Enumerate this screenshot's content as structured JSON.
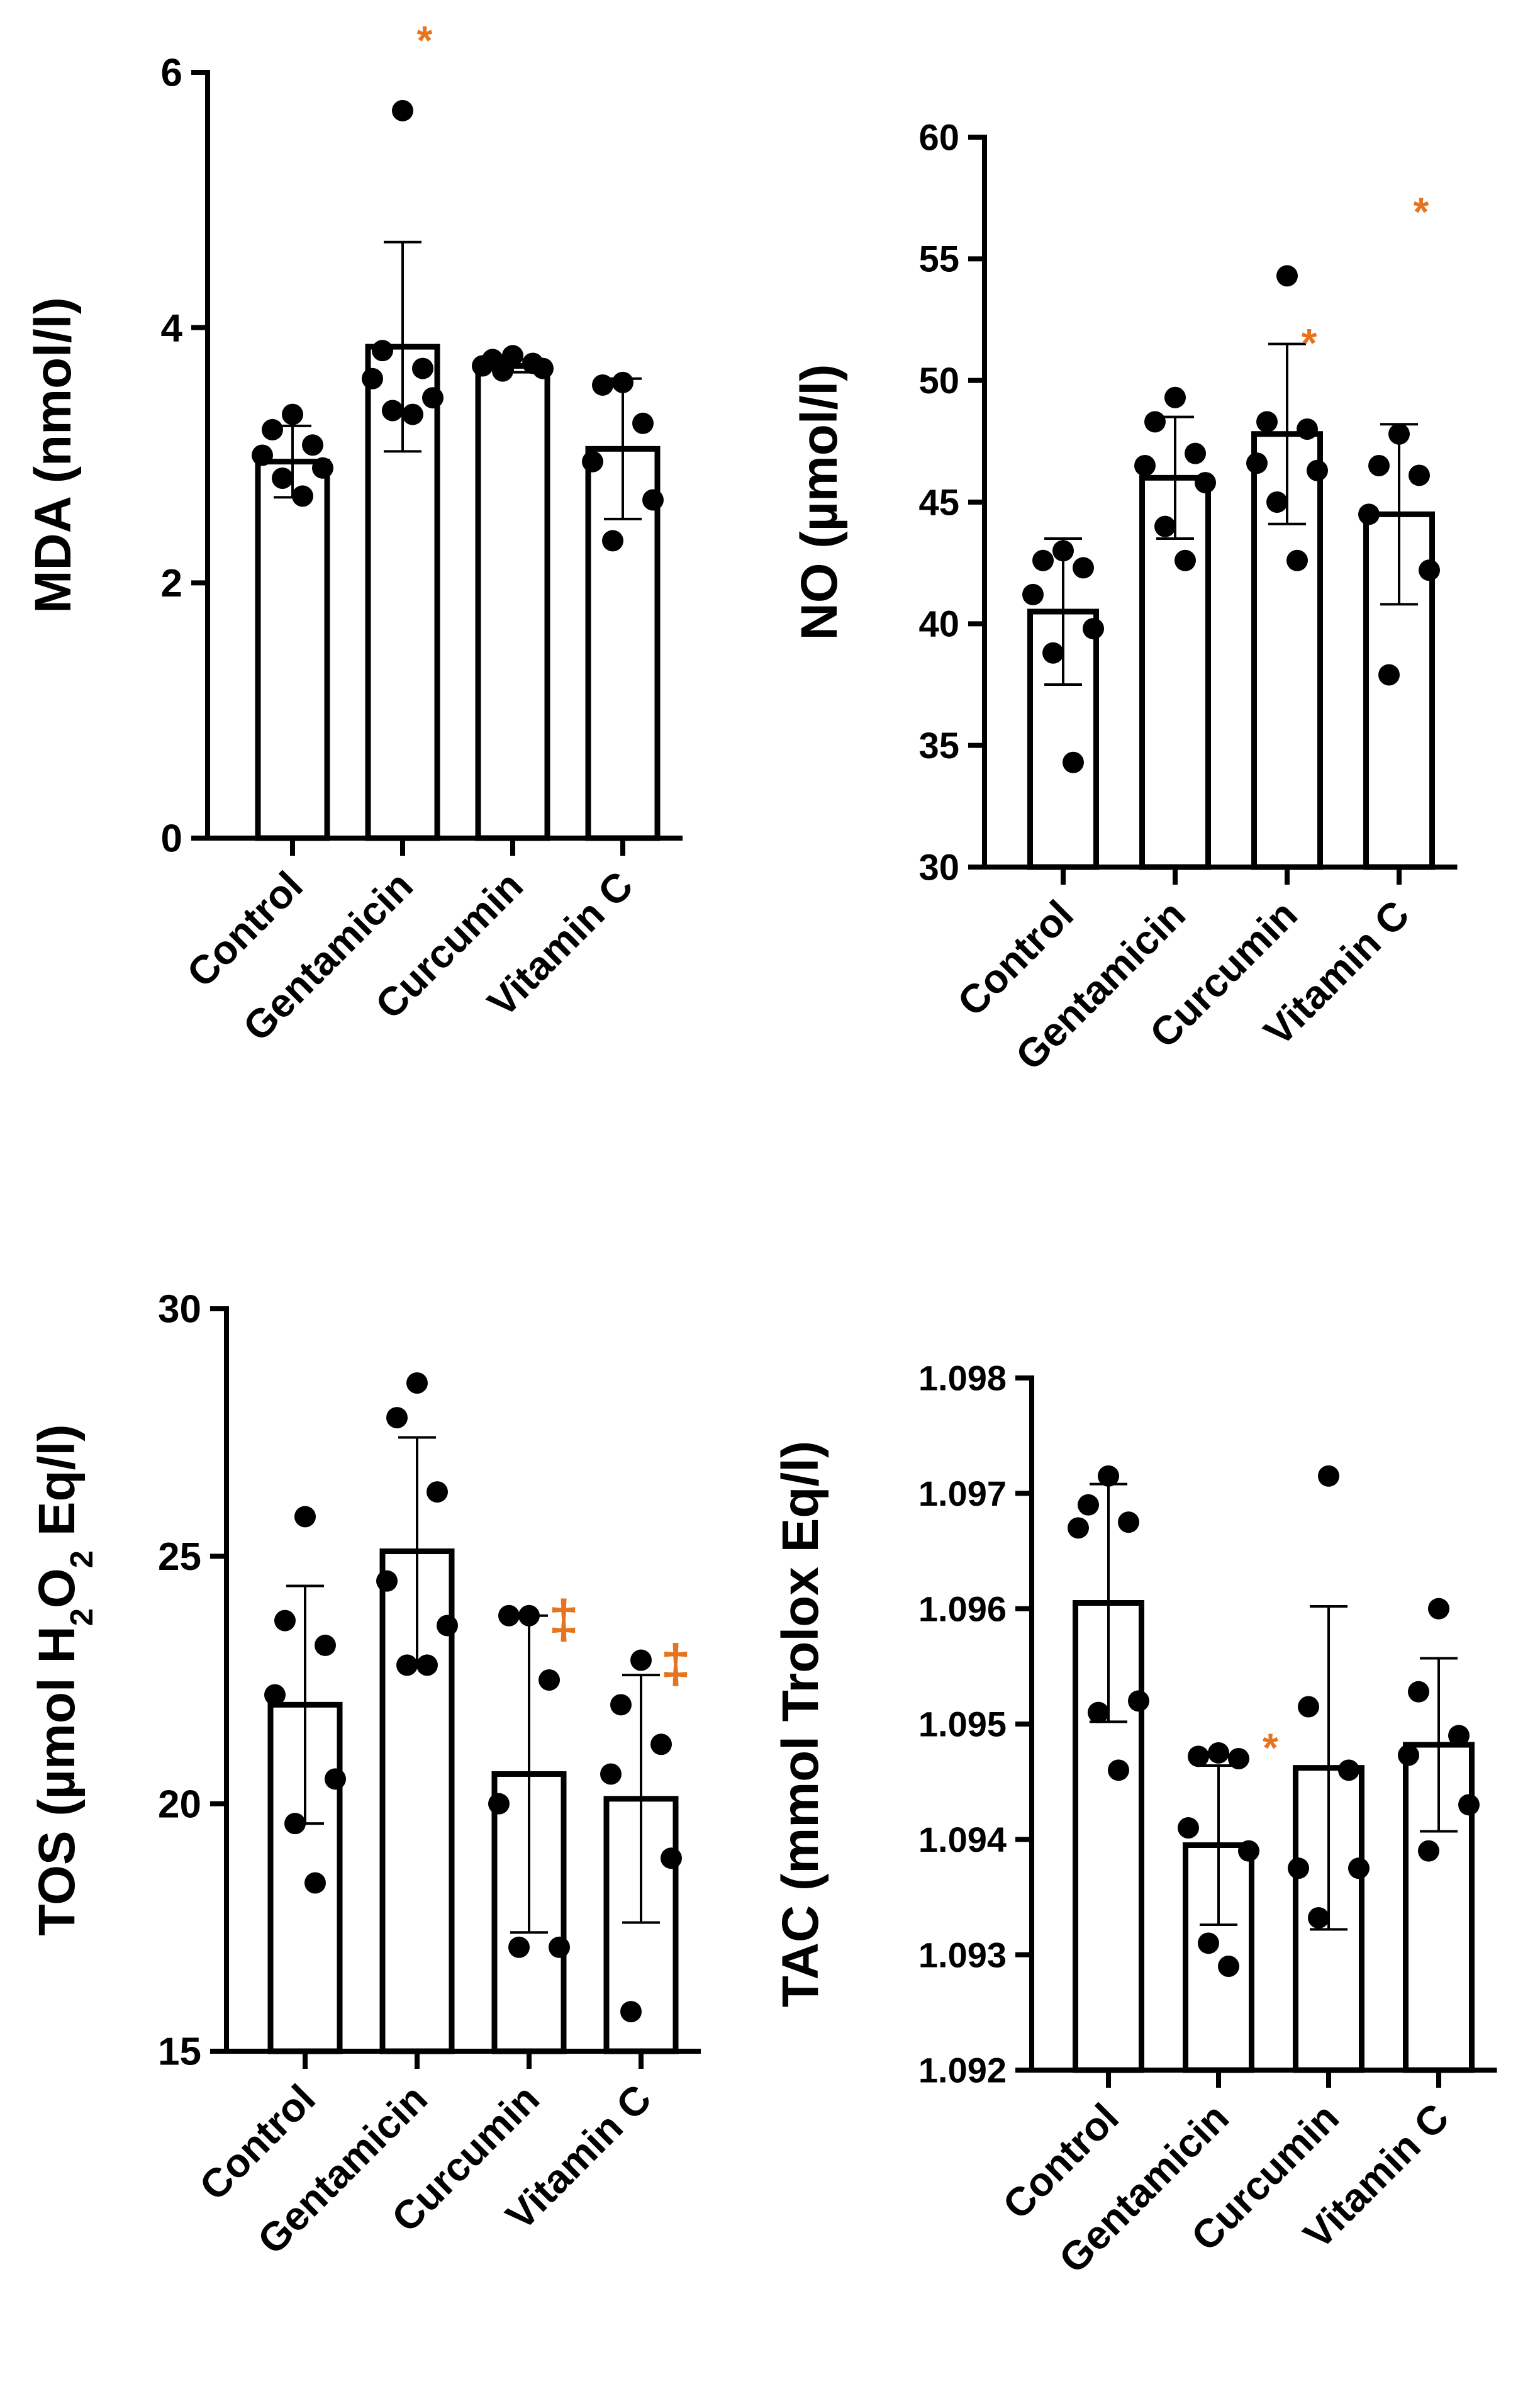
{
  "colors": {
    "ink": "#000000",
    "bar_fill": "#ffffff",
    "significance": "#e8731f"
  },
  "chart_data": [
    {
      "id": "mda",
      "type": "bar",
      "ylabel": "MDA (nmol/l)",
      "ylim": [
        0,
        6
      ],
      "yticks": [
        0,
        2,
        4,
        6
      ],
      "ytick_labels": [
        "0",
        "2",
        "4",
        "6"
      ],
      "categories": [
        "Control",
        "Gentamicin",
        "Curcumin",
        "Vitamin C"
      ],
      "means": [
        2.95,
        3.85,
        3.7,
        3.05
      ],
      "errors": [
        0.28,
        0.82,
        0.05,
        0.55
      ],
      "points": [
        [
          3.32,
          3.2,
          3.08,
          3.0,
          2.9,
          2.82,
          2.68
        ],
        [
          5.7,
          3.82,
          3.68,
          3.6,
          3.45,
          3.35,
          3.32
        ],
        [
          3.78,
          3.75,
          3.72,
          3.7,
          3.68,
          3.66
        ],
        [
          3.57,
          3.55,
          3.25,
          2.95,
          2.65,
          2.33
        ]
      ],
      "annotations": [
        {
          "category": 1,
          "y": 6.3,
          "text": "*"
        }
      ]
    },
    {
      "id": "no",
      "type": "bar",
      "ylabel": "NO (µmol/l)",
      "ylim": [
        30,
        60
      ],
      "yticks": [
        30,
        35,
        40,
        45,
        50,
        55,
        60
      ],
      "ytick_labels": [
        "30",
        "35",
        "40",
        "45",
        "50",
        "55",
        "60"
      ],
      "categories": [
        "Control",
        "Gentamicin",
        "Curcumin",
        "Vitamin C"
      ],
      "means": [
        40.5,
        46.0,
        47.8,
        44.5
      ],
      "errors": [
        3.0,
        2.5,
        3.7,
        3.7
      ],
      "points": [
        [
          43.0,
          42.6,
          42.3,
          41.2,
          39.8,
          38.8,
          34.3
        ],
        [
          49.3,
          48.3,
          47.0,
          46.5,
          45.8,
          44.0,
          42.6
        ],
        [
          54.3,
          48.3,
          48.0,
          46.6,
          46.3,
          45.0,
          42.6
        ],
        [
          47.8,
          46.5,
          46.1,
          44.5,
          42.2,
          37.9
        ]
      ],
      "annotations": [
        {
          "category": 2,
          "y": 51.8,
          "text": "*"
        },
        {
          "category": 3,
          "y": 57.2,
          "text": "*"
        }
      ]
    },
    {
      "id": "tos",
      "type": "bar",
      "ylabel": "TOS (µmol H2O2 Eq/l)",
      "ylabel_parts": [
        "TOS (µmol H",
        "2",
        "O",
        "2",
        " Eq/l)"
      ],
      "ylim": [
        15,
        30
      ],
      "yticks": [
        15,
        20,
        25,
        30
      ],
      "ytick_labels": [
        "15",
        "20",
        "25",
        "30"
      ],
      "categories": [
        "Control",
        "Gentamicin",
        "Curcumin",
        "Vitamin C"
      ],
      "means": [
        22.0,
        25.1,
        20.6,
        20.1
      ],
      "errors": [
        2.4,
        2.3,
        3.2,
        2.5
      ],
      "points": [
        [
          25.8,
          23.7,
          23.2,
          22.2,
          20.5,
          19.6,
          18.4
        ],
        [
          28.5,
          27.8,
          26.3,
          24.5,
          23.6,
          22.8,
          22.8
        ],
        [
          23.8,
          23.8,
          22.5,
          20.0,
          17.1,
          17.1
        ],
        [
          22.9,
          22.0,
          21.2,
          20.6,
          18.9,
          15.8
        ]
      ],
      "annotations": [
        {
          "category": 2,
          "y": 23.9,
          "text": "‡"
        },
        {
          "category": 3,
          "y": 23.0,
          "text": "‡"
        }
      ]
    },
    {
      "id": "tac",
      "type": "bar",
      "ylabel": "TAC (mmol Trolox Eq/l)",
      "ylim": [
        1.092,
        1.098
      ],
      "yticks": [
        1.092,
        1.093,
        1.094,
        1.095,
        1.096,
        1.097,
        1.098
      ],
      "ytick_labels": [
        "1.092",
        "1.093",
        "1.094",
        "1.095",
        "1.096",
        "1.097",
        "1.098"
      ],
      "categories": [
        "Control",
        "Gentamicin",
        "Curcumin",
        "Vitamin C"
      ],
      "means": [
        1.09605,
        1.09395,
        1.09462,
        1.09482
      ],
      "errors": [
        0.00103,
        0.00069,
        0.0014,
        0.00075
      ],
      "points": [
        [
          1.09715,
          1.0969,
          1.09675,
          1.0967,
          1.0952,
          1.0951,
          1.0946
        ],
        [
          1.09475,
          1.09472,
          1.0947,
          1.0941,
          1.0939,
          1.0931,
          1.0929
        ],
        [
          1.09715,
          1.09515,
          1.0946,
          1.09375,
          1.09375,
          1.09332
        ],
        [
          1.096,
          1.09528,
          1.0949,
          1.09473,
          1.0943,
          1.0939
        ]
      ],
      "annotations": [
        {
          "category": 1,
          "y": 1.09485,
          "text": "*",
          "side": "right"
        }
      ]
    }
  ]
}
